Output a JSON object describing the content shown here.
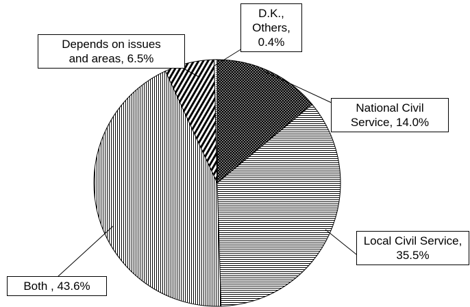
{
  "chart_data": {
    "type": "pie",
    "labels": [
      "National Civil Service, 14.0%",
      "Local Civil Service, 35.5%",
      "Both , 43.6%",
      "Depends on issues and areas, 6.5%",
      "D.K., Others, 0.4%"
    ],
    "values": [
      14.0,
      35.5,
      43.6,
      6.5,
      0.4
    ]
  }
}
